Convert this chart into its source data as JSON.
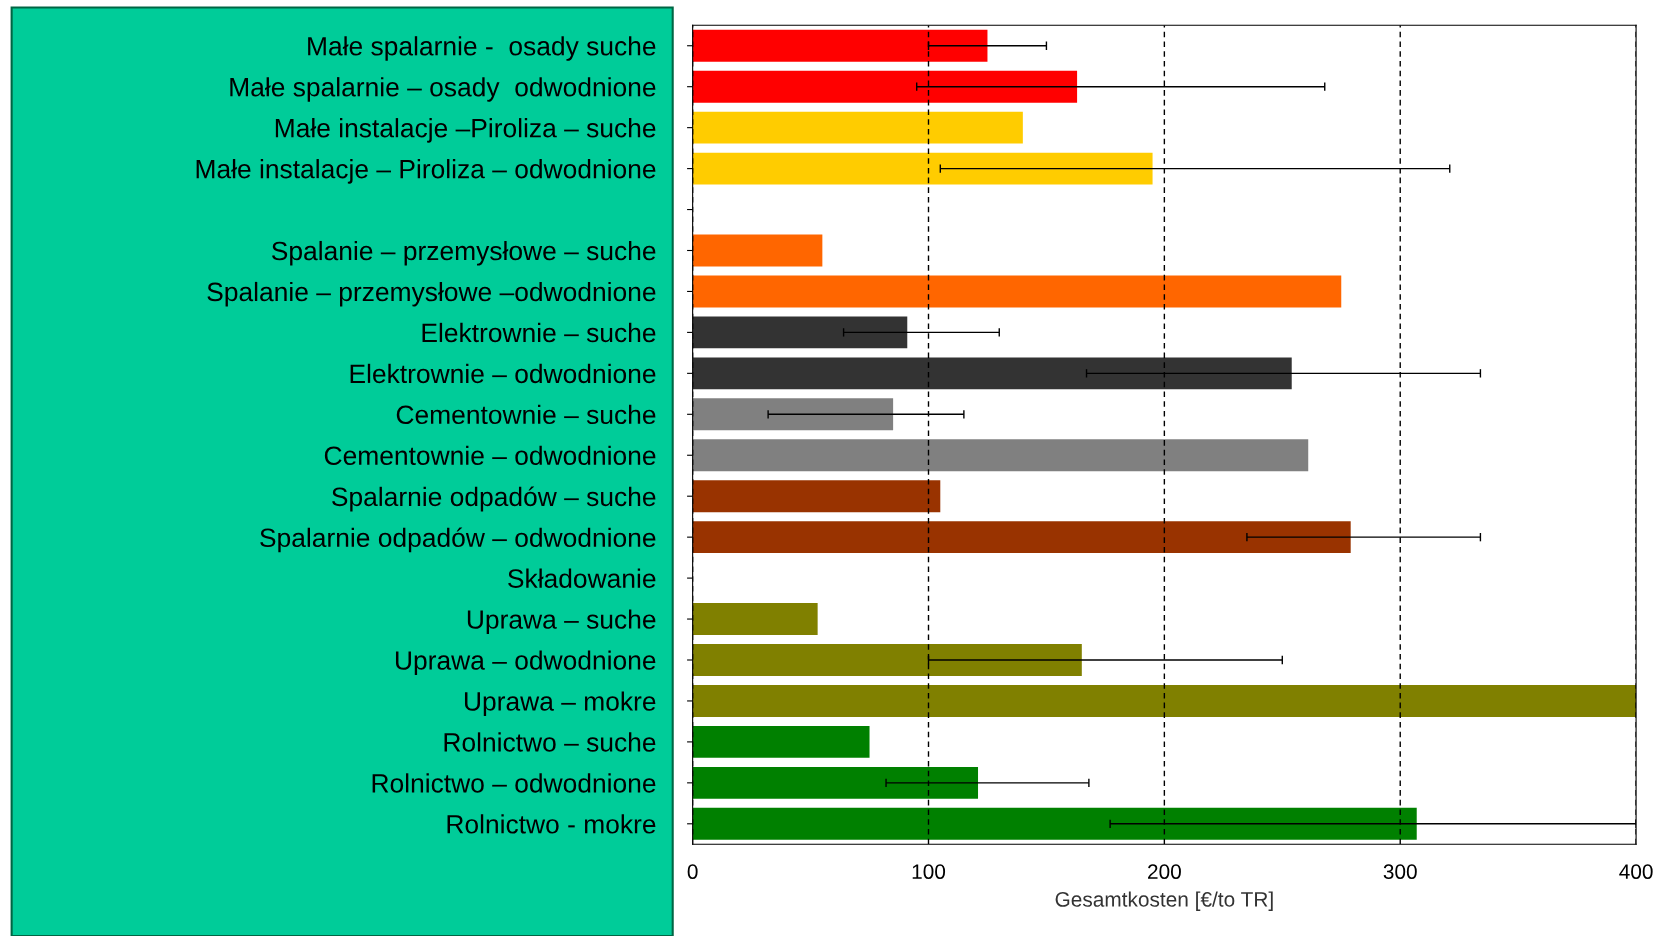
{
  "chart_data": {
    "type": "bar",
    "orientation": "horizontal",
    "xlabel": "Gesamtkosten [€/to TR]",
    "categories": [
      "Małe spalarnie -  osady suche",
      "Małe spalarnie – osady  odwodnione",
      "Małe instalacje –Piroliza – suche",
      "Małe instalacje – Piroliza – odwodnione",
      null,
      "Spalanie – przemysłowe – suche",
      "Spalanie – przemysłowe –odwodnione",
      "Elektrownie – suche",
      "Elektrownie – odwodnione",
      "Cementownie – suche",
      "Cementownie – odwodnione",
      "Spalarnie odpadów – suche",
      "Spalarnie odpadów – odwodnione",
      "Składowanie",
      "Uprawa – suche",
      "Uprawa – odwodnione",
      "Uprawa – mokre",
      "Rolnictwo – suche",
      "Rolnictwo – odwodnione",
      "Rolnictwo - mokre"
    ],
    "values": [
      125,
      163,
      140,
      195,
      null,
      55,
      275,
      91,
      254,
      85,
      261,
      105,
      279,
      null,
      53,
      165,
      400,
      75,
      121,
      307
    ],
    "colors": [
      "#ff0000",
      "#ff0000",
      "#ffcc00",
      "#ffcc00",
      null,
      "#ff6600",
      "#ff6600",
      "#333333",
      "#333333",
      "#808080",
      "#808080",
      "#993300",
      "#993300",
      null,
      "#808000",
      "#808000",
      "#808000",
      "#008000",
      "#008000",
      "#008000"
    ],
    "errors": [
      [
        100,
        150
      ],
      [
        95,
        268
      ],
      null,
      [
        105,
        321
      ],
      null,
      null,
      null,
      [
        64,
        130
      ],
      [
        167,
        334
      ],
      [
        32,
        115
      ],
      null,
      null,
      [
        235,
        334
      ],
      null,
      null,
      [
        100,
        250
      ],
      null,
      null,
      [
        82,
        168
      ],
      [
        177,
        400
      ]
    ],
    "xlim": [
      0,
      400
    ],
    "xticks": [
      0,
      100,
      200,
      300,
      400
    ],
    "grid": "x"
  }
}
